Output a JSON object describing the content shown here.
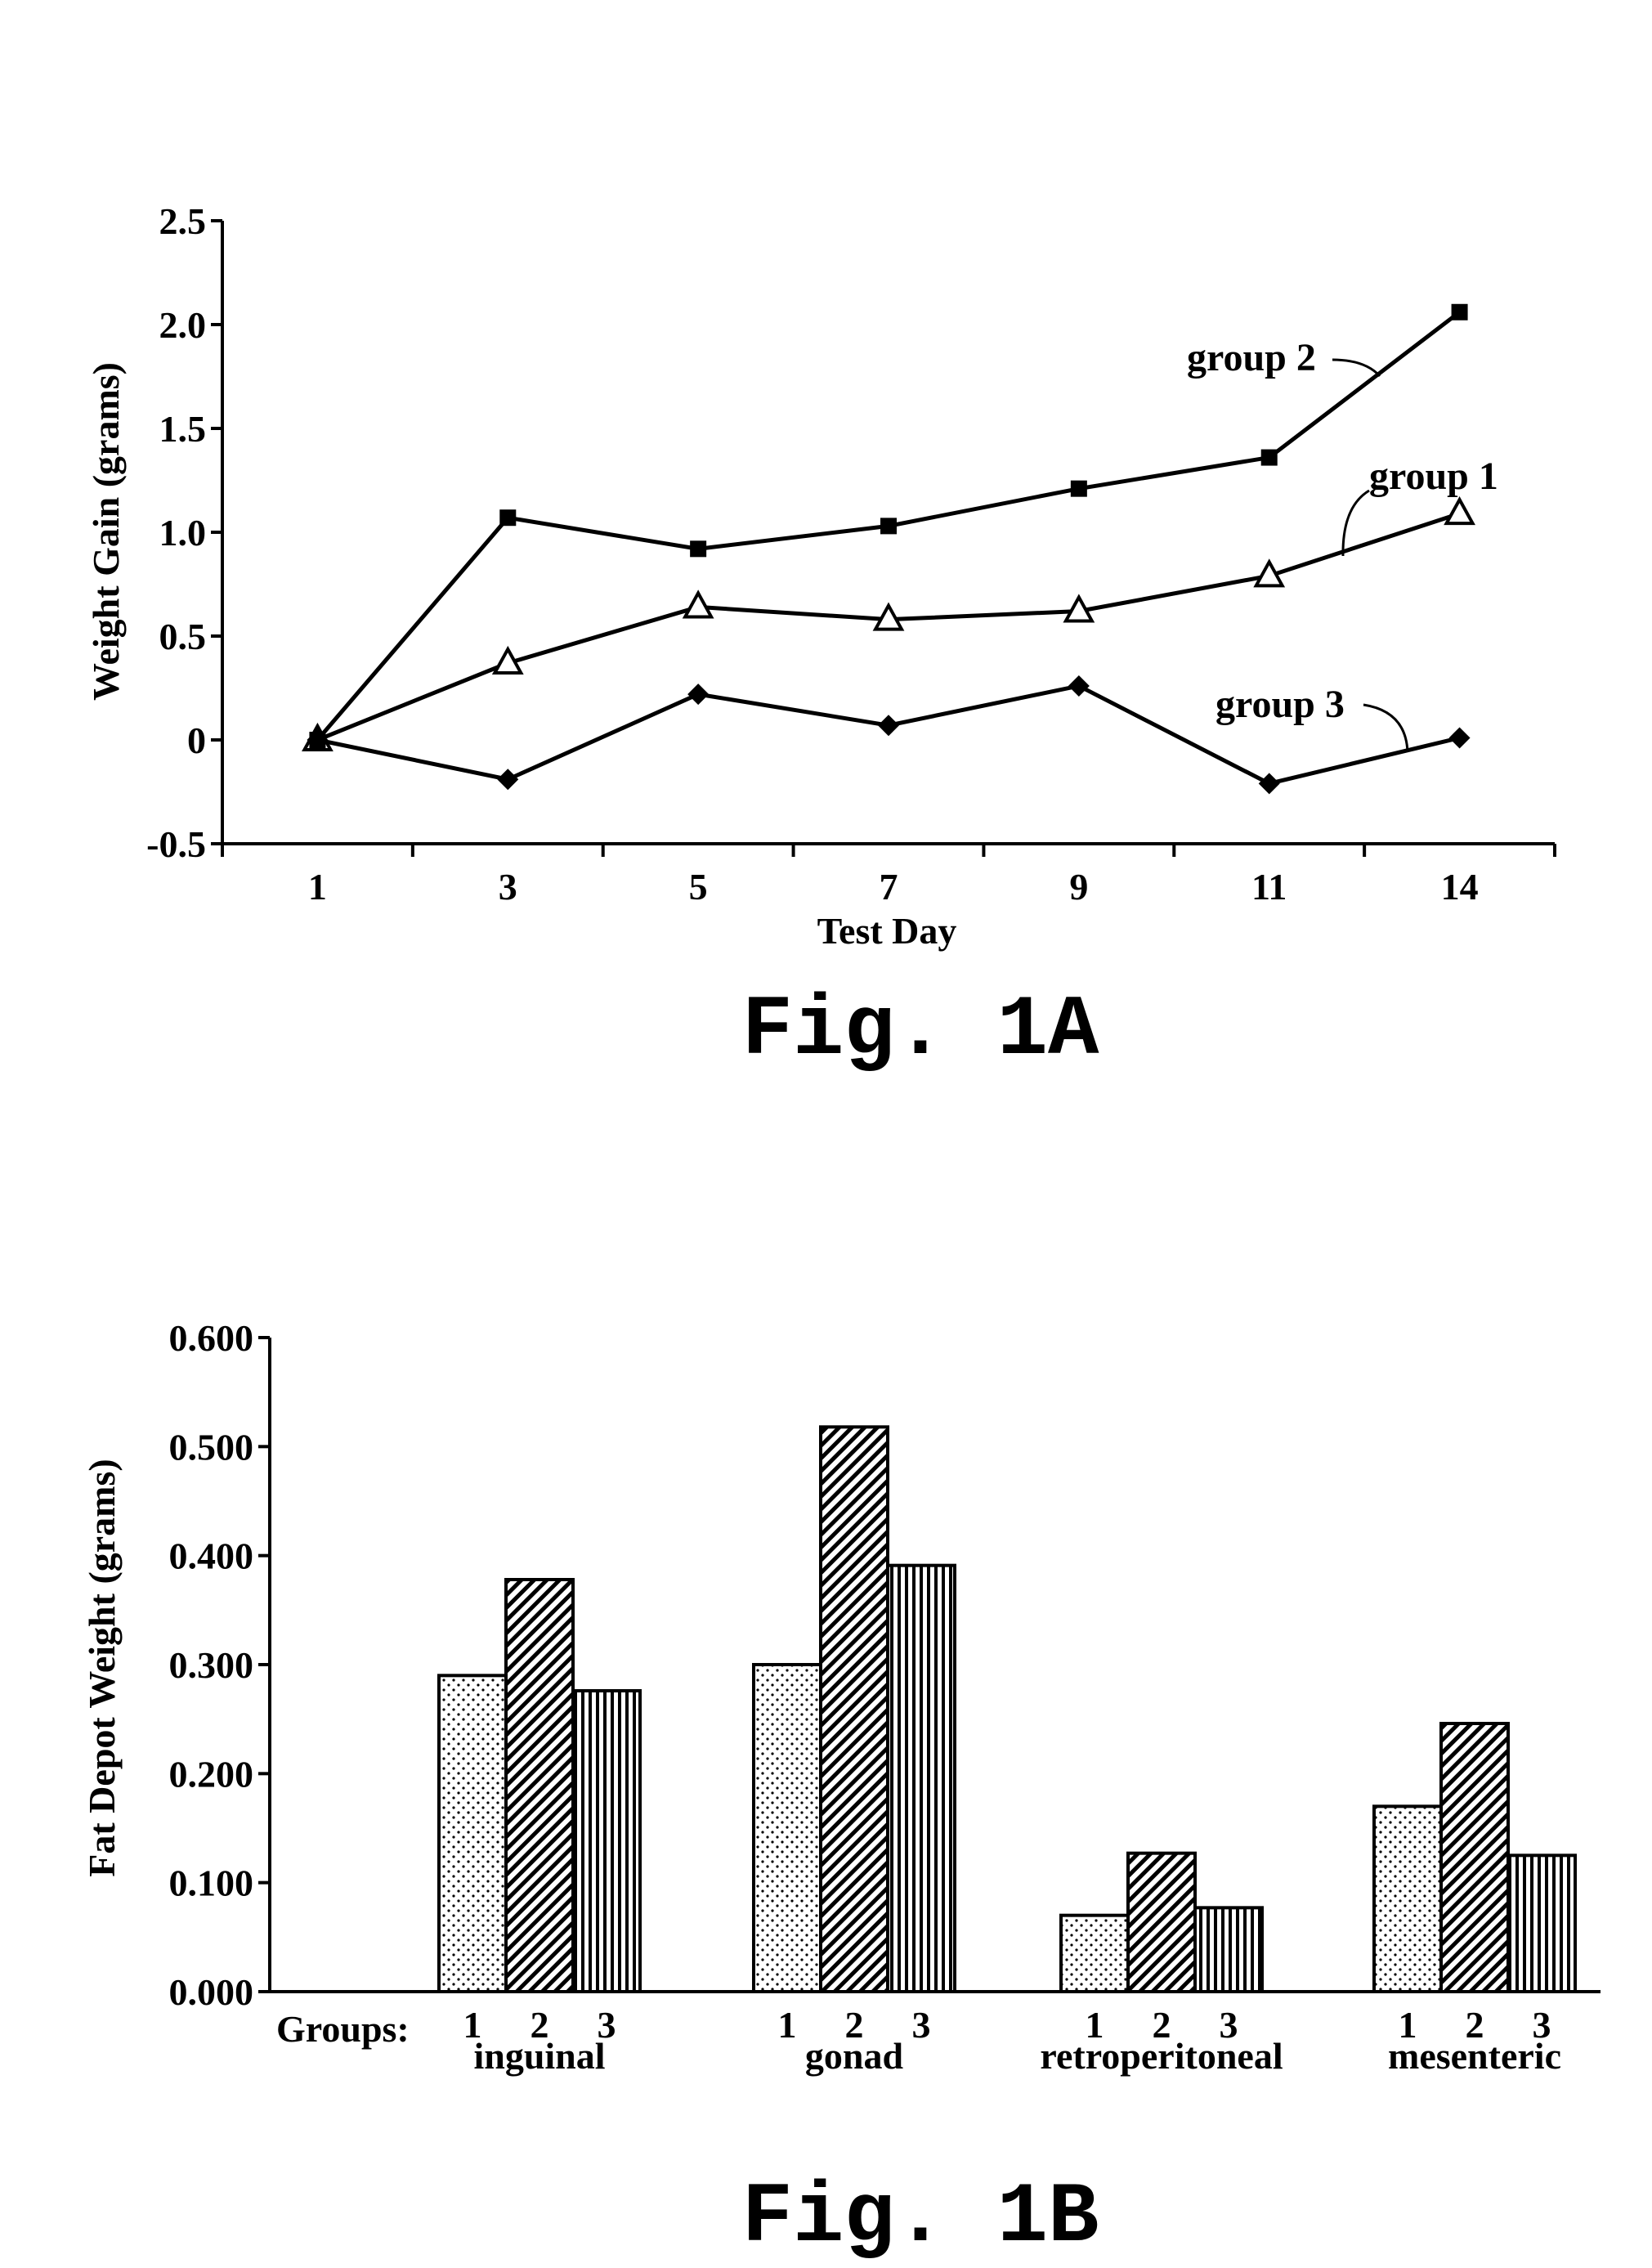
{
  "chart_data": [
    {
      "type": "line",
      "figure_label": "Fig. 1A",
      "xlabel": "Test Day",
      "ylabel": "Weight Gain (grams)",
      "x": [
        "1",
        "3",
        "5",
        "7",
        "9",
        "11",
        "14"
      ],
      "ylim": [
        -0.5,
        2.5
      ],
      "yticks": [
        "-0.5",
        "0",
        "0.5",
        "1.0",
        "1.5",
        "2.0",
        "2.5"
      ],
      "yticks_values": [
        -0.5,
        0,
        0.5,
        1.0,
        1.5,
        2.0,
        2.5
      ],
      "grid": false,
      "series": [
        {
          "name": "group 1",
          "marker": "open-triangle",
          "values": [
            0.0,
            0.37,
            0.64,
            0.58,
            0.62,
            0.79,
            1.09
          ]
        },
        {
          "name": "group 2",
          "marker": "filled-square",
          "values": [
            0.0,
            1.07,
            0.92,
            1.03,
            1.21,
            1.36,
            2.06
          ]
        },
        {
          "name": "group 3",
          "marker": "filled-diamond",
          "values": [
            0.0,
            -0.19,
            0.22,
            0.07,
            0.26,
            -0.21,
            0.01
          ]
        }
      ]
    },
    {
      "type": "bar",
      "figure_label": "Fig. 1B",
      "ylabel": "Fat Depot Weight (grams)",
      "groups_label": "Groups:",
      "categories": [
        "inguinal",
        "gonad",
        "retroperitoneal",
        "mesenteric"
      ],
      "group_numbers": [
        "1",
        "2",
        "3"
      ],
      "ylim": [
        0,
        0.6
      ],
      "yticks": [
        "0.000",
        "0.100",
        "0.200",
        "0.300",
        "0.400",
        "0.500",
        "0.600"
      ],
      "yticks_values": [
        0,
        0.1,
        0.2,
        0.3,
        0.4,
        0.5,
        0.6
      ],
      "grid": false,
      "series": [
        {
          "group": "1",
          "pattern": "dots",
          "values": [
            0.29,
            0.3,
            0.07,
            0.17
          ]
        },
        {
          "group": "2",
          "pattern": "diagonal-hatch",
          "values": [
            0.378,
            0.518,
            0.127,
            0.246
          ]
        },
        {
          "group": "3",
          "pattern": "vertical-lines",
          "values": [
            0.276,
            0.391,
            0.077,
            0.125
          ]
        }
      ]
    }
  ]
}
